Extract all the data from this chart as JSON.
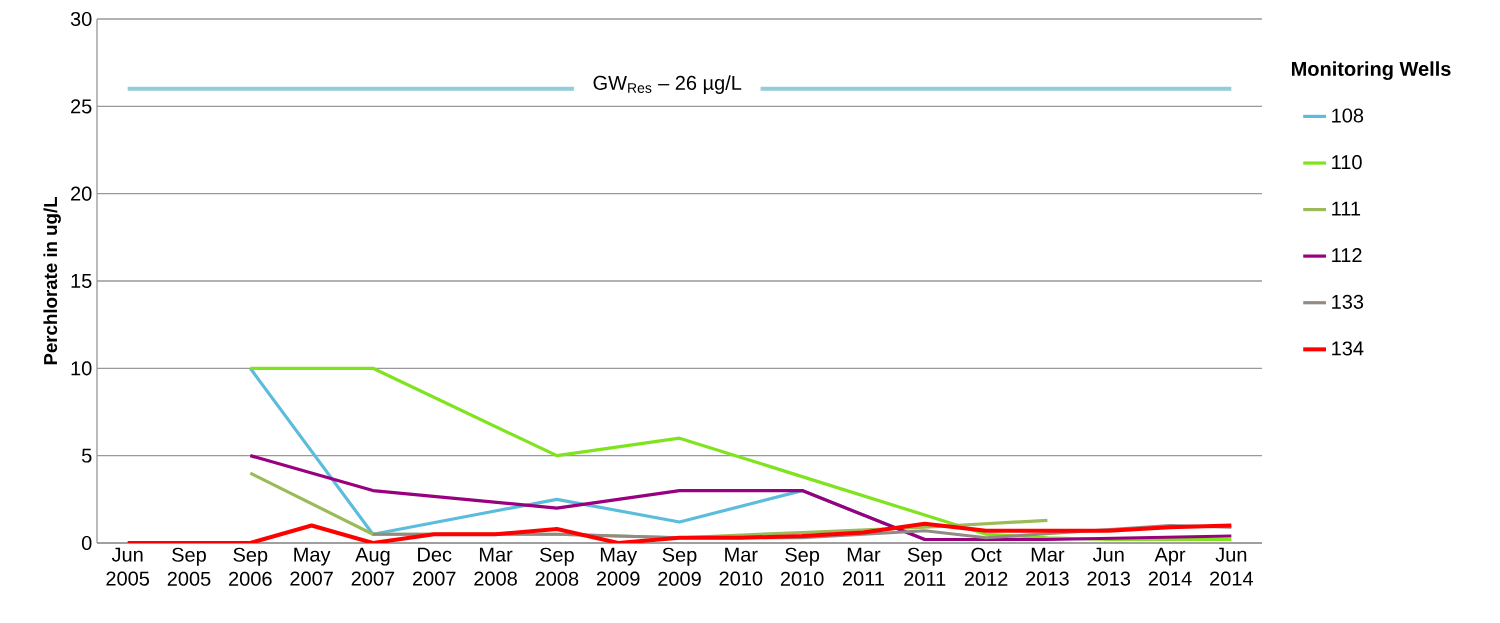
{
  "chart_data": {
    "type": "line",
    "ylabel": "Perchlorate in ug/L",
    "legend_title": "Monitoring Wells",
    "categories": [
      "Jun 2005",
      "Sep 2005",
      "Sep 2006",
      "May 2007",
      "Aug 2007",
      "Dec 2007",
      "Mar 2008",
      "Sep 2008",
      "May 2009",
      "Sep 2009",
      "Mar 2010",
      "Sep 2010",
      "Mar 2011",
      "Sep 2011",
      "Oct 2012",
      "Mar 2013",
      "Jun 2013",
      "Apr 2014",
      "Jun 2014"
    ],
    "series": [
      {
        "name": "108",
        "color": "#5bbcdc",
        "values": [
          null,
          null,
          10,
          null,
          0.5,
          null,
          null,
          2.5,
          null,
          1.2,
          null,
          3,
          null,
          0.2,
          null,
          null,
          null,
          null,
          null
        ]
      },
      {
        "name": "110",
        "color": "#7fe31e",
        "values": [
          null,
          null,
          10,
          null,
          10,
          null,
          null,
          5,
          null,
          6,
          null,
          3.8,
          null,
          1.6,
          0.5,
          0.3,
          0.2,
          0.2,
          0.2
        ]
      },
      {
        "name": "111",
        "color": "#9bbb59",
        "values": [
          null,
          null,
          4,
          null,
          0.5,
          null,
          null,
          0.5,
          null,
          0.3,
          null,
          0.6,
          null,
          0.9,
          null,
          1.3,
          null,
          null,
          null
        ]
      },
      {
        "name": "112",
        "color": "#98007f",
        "values": [
          null,
          null,
          5,
          null,
          3,
          null,
          null,
          2,
          null,
          3,
          null,
          3,
          null,
          0.2,
          null,
          0.2,
          null,
          null,
          0.4
        ]
      },
      {
        "name": "133",
        "color": "#948a84",
        "values": [
          null,
          null,
          null,
          null,
          0.5,
          null,
          null,
          0.5,
          null,
          0.3,
          null,
          0.3,
          null,
          0.7,
          0.3,
          null,
          null,
          1,
          0.9
        ]
      },
      {
        "name": "134",
        "color": "#ff0000",
        "values": [
          0,
          0,
          0,
          1,
          0,
          0.5,
          0.5,
          0.8,
          0,
          0.3,
          0.3,
          0.4,
          0.6,
          1.1,
          0.7,
          0.7,
          0.7,
          0.9,
          1
        ]
      }
    ],
    "ylim": [
      0,
      30
    ],
    "yticks": [
      0,
      5,
      10,
      15,
      20,
      25,
      30
    ],
    "grid": "y",
    "legend": "right",
    "marker": "none",
    "ref_lines": [
      {
        "axis": "y",
        "value": 26,
        "label": "GW$_{Res}$ – 26 µg/L",
        "color": "#92cddc"
      }
    ]
  }
}
